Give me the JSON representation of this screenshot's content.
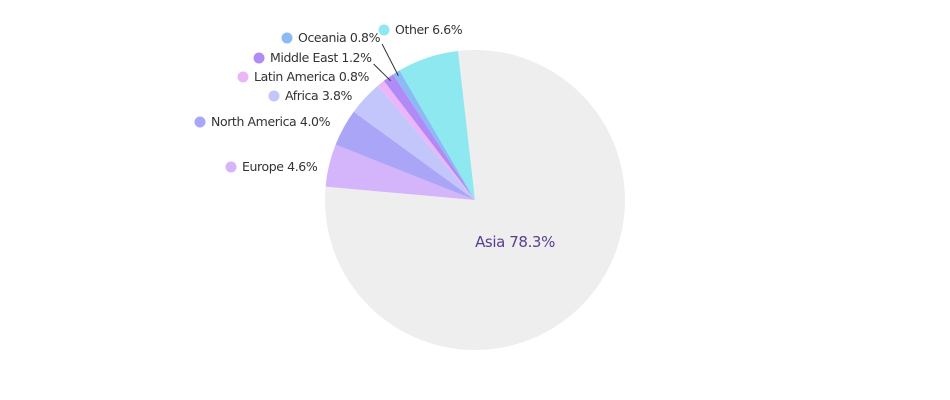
{
  "chart_data": {
    "type": "pie",
    "categories": [
      "Asia",
      "Europe",
      "North America",
      "Africa",
      "Latin America",
      "Middle East",
      "Oceania",
      "Other"
    ],
    "values": [
      78.3,
      4.6,
      4.0,
      3.8,
      0.8,
      1.2,
      0.8,
      6.6
    ],
    "value_labels": [
      "78.3%",
      "4.6%",
      "4.0%",
      "3.8%",
      "0.8%",
      "1.2%",
      "0.8%",
      "6.6%"
    ],
    "colors": [
      "#eeeeee",
      "#d4b5fb",
      "#aaa5f7",
      "#c3c6fb",
      "#ecb5f7",
      "#b08af5",
      "#8bbaf5",
      "#8de8f0"
    ]
  }
}
